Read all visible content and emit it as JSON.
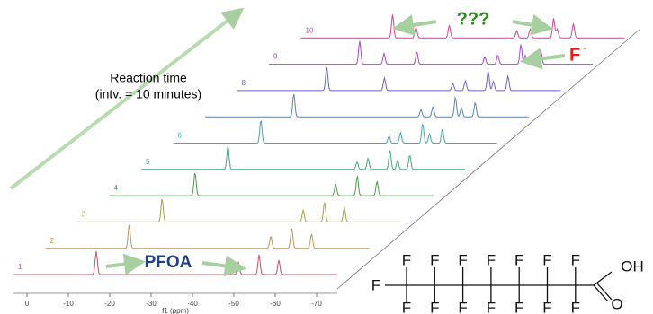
{
  "labels": {
    "reaction_time": "Reaction time",
    "interval": "(intv. = 10 minutes)"
  },
  "annotations": {
    "unknown": "???",
    "fluoride": "F",
    "fluoride_charge": "-",
    "pfoa": "PFOA"
  },
  "trace_labels": [
    "1",
    "2",
    "3",
    "4",
    "5",
    "6",
    "8",
    "9",
    "10"
  ],
  "x_axis": {
    "ticks": [
      "0",
      "-10",
      "-20",
      "-30",
      "-40",
      "-50",
      "-60",
      "-70"
    ],
    "label": "f1 (ppm)"
  },
  "molecule": {
    "fluorines": [
      "F",
      "F",
      "F",
      "F",
      "F",
      "F",
      "F",
      "F",
      "F",
      "F",
      "F",
      "F",
      "F",
      "F",
      "F"
    ],
    "hydroxyl": "OH",
    "oxygen": "O"
  }
}
